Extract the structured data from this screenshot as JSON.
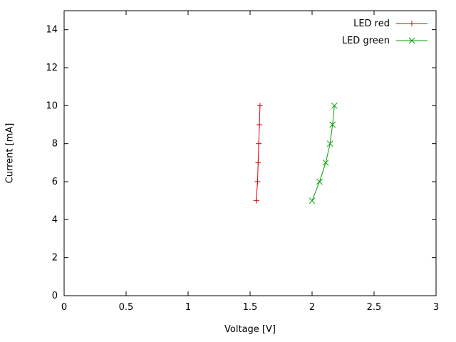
{
  "figure": {
    "xlabel": "Voltage [V]",
    "ylabel": "Current [mA]"
  },
  "chart_data": {
    "type": "line",
    "title": "",
    "xlabel": "Voltage [V]",
    "ylabel": "Current [mA]",
    "xlim": [
      0,
      3
    ],
    "ylim": [
      0,
      15
    ],
    "grid": false,
    "legend_position": "top-right-inside",
    "axis_color": "#000000",
    "xticks": [
      {
        "v": 0,
        "label": "0"
      },
      {
        "v": 0.5,
        "label": "0.5"
      },
      {
        "v": 1,
        "label": "1"
      },
      {
        "v": 1.5,
        "label": "1.5"
      },
      {
        "v": 2,
        "label": "2"
      },
      {
        "v": 2.5,
        "label": "2.5"
      },
      {
        "v": 3,
        "label": "3"
      }
    ],
    "yticks": [
      {
        "v": 0,
        "label": "0"
      },
      {
        "v": 2,
        "label": "2"
      },
      {
        "v": 4,
        "label": "4"
      },
      {
        "v": 6,
        "label": "6"
      },
      {
        "v": 8,
        "label": "8"
      },
      {
        "v": 10,
        "label": "10"
      },
      {
        "v": 12,
        "label": "12"
      },
      {
        "v": 14,
        "label": "14"
      }
    ],
    "series": [
      {
        "name": "LED red",
        "color": "#dd0000",
        "marker": "plus",
        "points": [
          [
            1.55,
            5
          ],
          [
            1.56,
            6
          ],
          [
            1.565,
            7
          ],
          [
            1.57,
            8
          ],
          [
            1.575,
            9
          ],
          [
            1.58,
            10
          ]
        ]
      },
      {
        "name": "LED green",
        "color": "#00a000",
        "marker": "cross",
        "points": [
          [
            2.0,
            5
          ],
          [
            2.06,
            6
          ],
          [
            2.11,
            7
          ],
          [
            2.145,
            8
          ],
          [
            2.165,
            9
          ],
          [
            2.18,
            10
          ]
        ]
      }
    ]
  }
}
